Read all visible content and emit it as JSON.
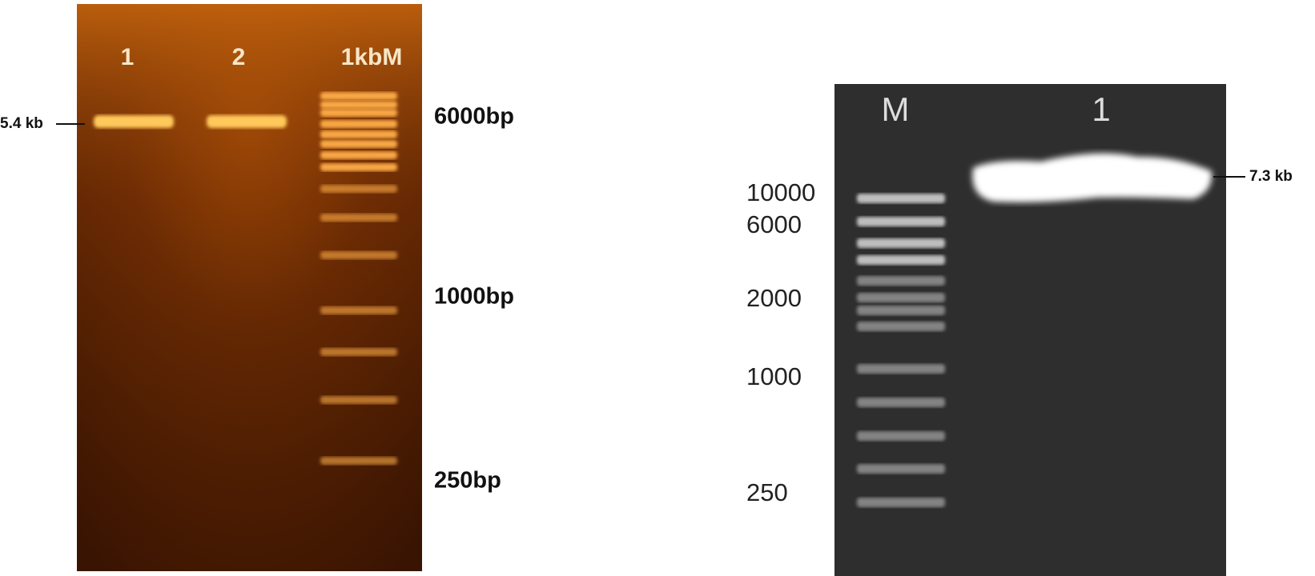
{
  "left_gel": {
    "lane_labels": [
      "1",
      "2",
      "1kbM"
    ],
    "band_label": "5.4 kb",
    "marker_labels": [
      "6000bp",
      "1000bp",
      "250bp"
    ]
  },
  "right_gel": {
    "lane_labels": [
      "M",
      "1"
    ],
    "band_label": "7.3 kb",
    "marker_labels": [
      "10000",
      "6000",
      "2000",
      "1000",
      "250"
    ]
  }
}
